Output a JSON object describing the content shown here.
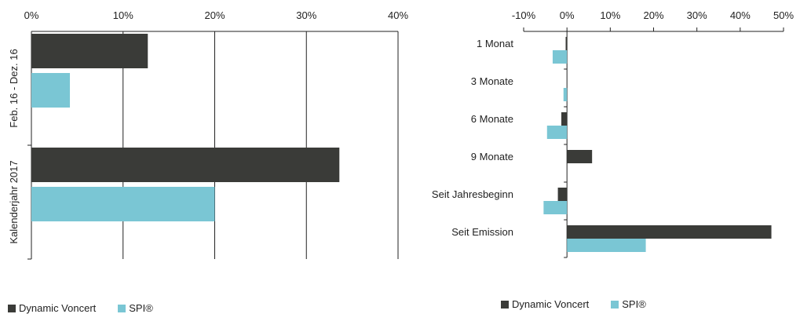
{
  "colors": {
    "dynamic": "#3a3b38",
    "spi": "#7ac6d4",
    "axis": "#222222"
  },
  "chart_data": [
    {
      "type": "bar",
      "orientation": "horizontal",
      "xlim": [
        0,
        40
      ],
      "xticks": [
        0,
        10,
        20,
        30,
        40
      ],
      "xtick_labels": [
        "0%",
        "10%",
        "20%",
        "30%",
        "40%"
      ],
      "categories": [
        "Feb. 16 - Dez. 16",
        "Kalenderjahr 2017"
      ],
      "series": [
        {
          "name": "Dynamic Voncert",
          "values": [
            12.7,
            33.6
          ]
        },
        {
          "name": "SPI®",
          "values": [
            4.2,
            20.0
          ]
        }
      ],
      "legend": {
        "position": "bottom-left",
        "items": [
          "Dynamic Voncert",
          "SPI®"
        ]
      }
    },
    {
      "type": "bar",
      "orientation": "horizontal",
      "xlim": [
        -10,
        50
      ],
      "xticks": [
        -10,
        0,
        10,
        20,
        30,
        40,
        50
      ],
      "xtick_labels": [
        "-10%",
        "0%",
        "10%",
        "20%",
        "30%",
        "40%",
        "50%"
      ],
      "categories": [
        "1 Monat",
        "3 Monate",
        "6 Monate",
        "9 Monate",
        "Seit Jahresbeginn",
        "Seit Emission"
      ],
      "series": [
        {
          "name": "Dynamic Voncert",
          "values": [
            -0.3,
            0.0,
            -1.3,
            5.8,
            -2.1,
            47.2
          ]
        },
        {
          "name": "SPI®",
          "values": [
            -3.3,
            -0.8,
            -4.6,
            0.0,
            -5.4,
            18.2
          ]
        }
      ],
      "legend": {
        "position": "bottom-center",
        "items": [
          "Dynamic Voncert",
          "SPI®"
        ]
      }
    }
  ]
}
